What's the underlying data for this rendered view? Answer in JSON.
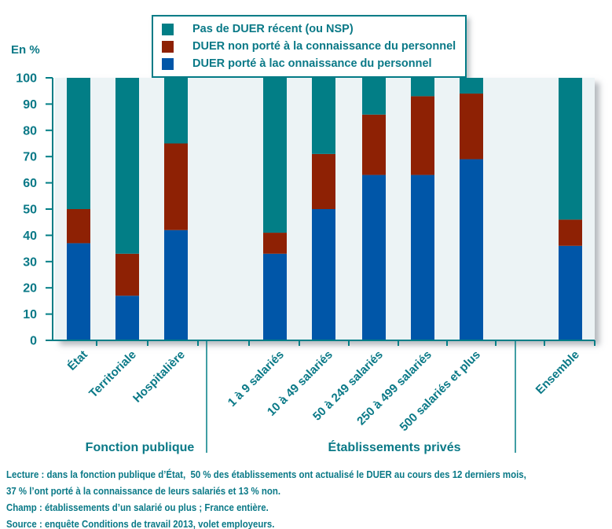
{
  "colors": {
    "teal": "#027E86",
    "red": "#8E2104",
    "blue": "#0056A8",
    "plot_bg": "#ECF3F5",
    "text": "#0A7987",
    "page_bg": "#FFFFFF"
  },
  "legend": {
    "items": [
      {
        "label": "Pas de DUER récent (ou NSP)",
        "color": "#027E86",
        "icon": "teal-square-swatch"
      },
      {
        "label": "DUER non porté à la connaissance du personnel",
        "color": "#8E2104",
        "icon": "red-square-swatch"
      },
      {
        "label": "DUER porté à lac onnaissance du personnel",
        "color": "#0056A8",
        "icon": "blue-square-swatch"
      }
    ]
  },
  "y_axis": {
    "unit_label": "En %",
    "ticks": [
      0,
      10,
      20,
      30,
      40,
      50,
      60,
      70,
      80,
      90,
      100
    ]
  },
  "chart_data": {
    "type": "bar",
    "stacked": true,
    "grid": false,
    "legend_position": "top",
    "ylabel": "En %",
    "ylim": [
      0,
      100
    ],
    "categories": [
      "État",
      "Territoriale",
      "Hospitalière",
      "1 à 9 salariés",
      "10 à 49 salariés",
      "50 à 249 salariés",
      "250 à 499 salariés",
      "500 salariés et plus",
      "Ensemble"
    ],
    "series": [
      {
        "name": "DUER porté à lac onnaissance du personnel",
        "color": "#0056A8",
        "values": [
          37,
          17,
          42,
          33,
          50,
          63,
          63,
          69,
          36
        ]
      },
      {
        "name": "DUER non porté à la connaissance du personnel",
        "color": "#8E2104",
        "values": [
          13,
          16,
          33,
          8,
          21,
          23,
          30,
          25,
          10
        ]
      },
      {
        "name": "Pas de DUER récent (ou NSP)",
        "color": "#027E86",
        "values": [
          50,
          67,
          25,
          59,
          29,
          14,
          7,
          6,
          54
        ]
      }
    ],
    "groups": [
      {
        "label": "Fonction publique",
        "span": [
          "État",
          "Hospitalière"
        ]
      },
      {
        "label": "Établissements privés",
        "span": [
          "1 à 9 salariés",
          "500 salariés et plus"
        ]
      }
    ]
  },
  "footer": {
    "lines": [
      "Lecture : dans la fonction publique d’État,  50 % des établissements ont actualisé le DUER au cours des 12 derniers mois,",
      "37 % l’ont porté à la connaissance de leurs salariés et 13 % non.",
      "Champ : établissements d’un salarié ou plus ; France entière.",
      "Source : enquête Conditions de travail 2013, volet employeurs."
    ]
  }
}
